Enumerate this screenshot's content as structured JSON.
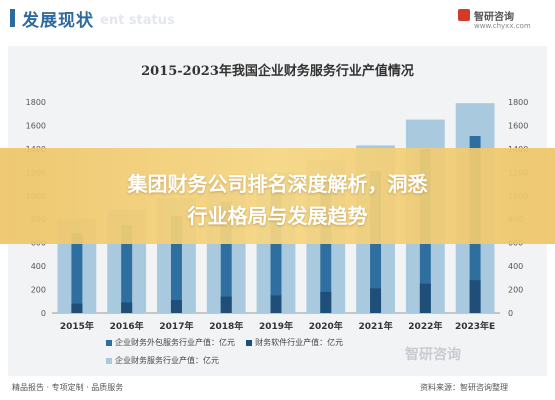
{
  "header": {
    "title": "发展现状",
    "title_en": "ent status",
    "logo_text": "智研咨询",
    "logo_url": "www.chyxx.com"
  },
  "colors": {
    "output_value_bar": "#a9c9de",
    "outsourcing_bar": "#2f6f9f",
    "software_bar": "#1f4e79",
    "overlay": "#f0c76a"
  },
  "chart_data": {
    "type": "bar",
    "title": "2015-2023年我国企业财务服务行业产值情况",
    "categories": [
      "2015年",
      "2016年",
      "2017年",
      "2018年",
      "2019年",
      "2020年",
      "2021年",
      "2022年",
      "2023年E"
    ],
    "ylim": [
      0,
      1800
    ],
    "yticks": [
      0,
      200,
      400,
      600,
      800,
      1000,
      1200,
      1400,
      1600,
      1800
    ],
    "series": [
      {
        "name": "企业财务服务行业产值：亿元",
        "values": [
          800,
          880,
          980,
          1090,
          1200,
          1300,
          1430,
          1650,
          1790
        ]
      },
      {
        "name": "企业财务外包服务行业产值：亿元",
        "values": [
          680,
          750,
          830,
          950,
          1040,
          1120,
          1210,
          1400,
          1510
        ]
      },
      {
        "name": "财务软件行业产值：亿元",
        "values": [
          80,
          90,
          110,
          140,
          150,
          180,
          210,
          250,
          280
        ]
      }
    ],
    "grid": false,
    "legend": "bottom-left"
  },
  "overlay": {
    "line1": "集团财务公司排名深度解析，洞悉",
    "line2": "行业格局与发展趋势"
  },
  "watermark": "智研咨询",
  "footer": {
    "left": "精品报告 · 专项定制 · 品质服务",
    "right": "资料来源：智研咨询整理"
  }
}
